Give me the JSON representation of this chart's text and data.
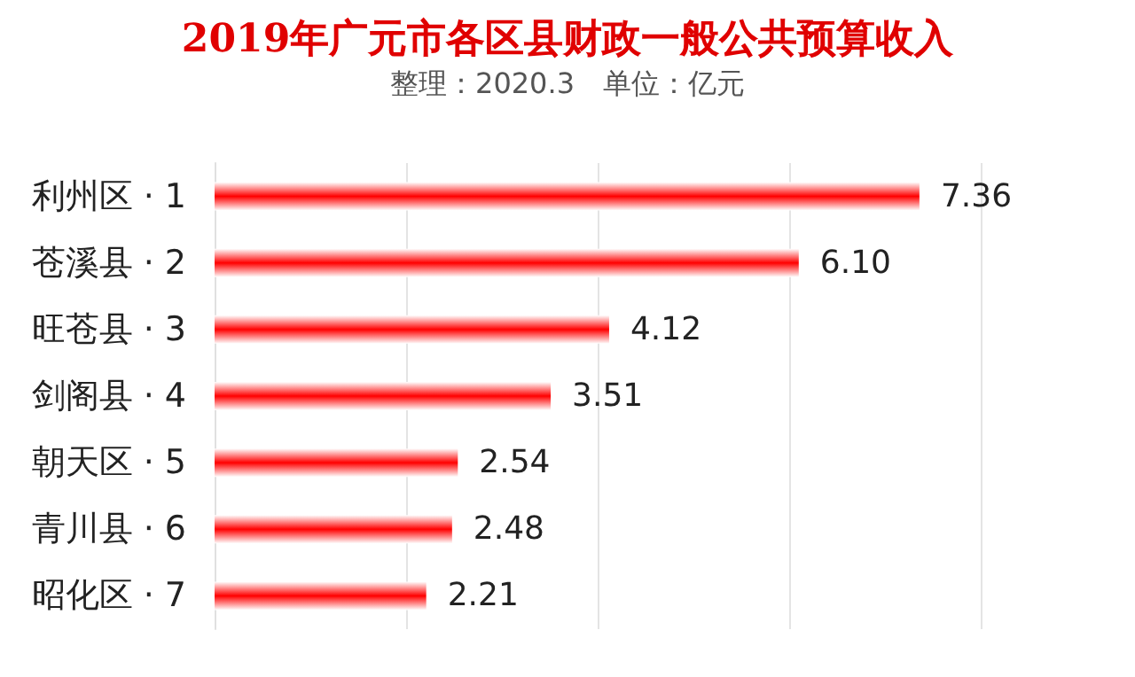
{
  "chart_data": {
    "type": "bar",
    "orientation": "horizontal",
    "title": "2019年广元市各区县财政一般公共预算收入",
    "subtitle": "整理：2020.3　单位：亿元",
    "categories": [
      "利州区 · 1",
      "苍溪县 · 2",
      "旺苍县 · 3",
      "剑阁县 · 4",
      "朝天区 · 5",
      "青川县 · 6",
      "昭化区 · 7"
    ],
    "values": [
      7.36,
      6.1,
      4.12,
      3.51,
      2.54,
      2.48,
      2.21
    ],
    "value_labels": [
      "7.36",
      "6.10",
      "4.12",
      "3.51",
      "2.54",
      "2.48",
      "2.21"
    ],
    "color": "#ff0000",
    "xlim": [
      0,
      8
    ],
    "xticks": [
      {
        "value": 0,
        "label": null
      },
      {
        "value": 2,
        "label": null
      },
      {
        "value": 4,
        "label": null
      },
      {
        "value": 6,
        "label": null
      },
      {
        "value": 8,
        "label": null
      }
    ],
    "grid": true,
    "tick_labels": "y"
  }
}
